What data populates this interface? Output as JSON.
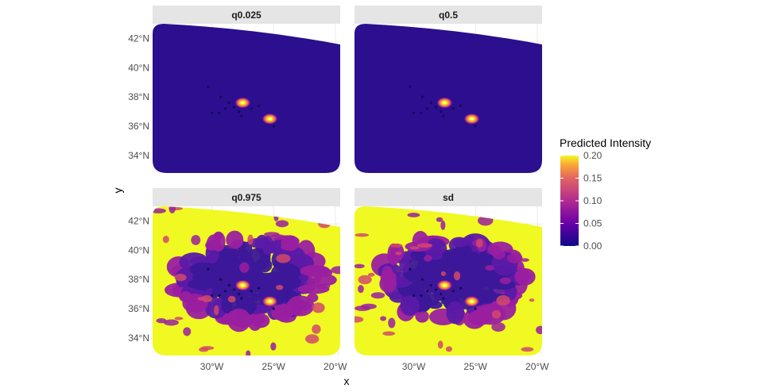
{
  "chart_data": {
    "type": "heatmap",
    "title": "",
    "xlabel": "x",
    "ylabel": "y",
    "x_ticks": [
      "30°W",
      "25°W",
      "20°W"
    ],
    "y_ticks": [
      "34°N",
      "36°N",
      "38°N",
      "40°N",
      "42°N"
    ],
    "x_tick_values": [
      -30,
      -25,
      -20
    ],
    "y_tick_values": [
      34,
      36,
      38,
      40,
      42
    ],
    "xlim": [
      -34.8,
      -19.6
    ],
    "ylim": [
      32.8,
      43.0
    ],
    "grid": true,
    "facets": [
      {
        "name": "q0.025",
        "background": "low"
      },
      {
        "name": "q0.5",
        "background": "low"
      },
      {
        "name": "q0.975",
        "background": "high"
      },
      {
        "name": "sd",
        "background": "high"
      }
    ],
    "legend": {
      "title": "Predicted Intensity",
      "labels": [
        "0.20",
        "0.15",
        "0.10",
        "0.05",
        "0.00"
      ],
      "values": [
        0.2,
        0.15,
        0.1,
        0.05,
        0.0
      ],
      "range": [
        0.0,
        0.2
      ],
      "placement": "right"
    },
    "palette": {
      "low": "#2b0f8e",
      "mid_low": "#5a1aa6",
      "mid": "#9a1fa0",
      "mid_high": "#d1496b",
      "high_orange": "#f58a3c",
      "high": "#f0f921"
    },
    "hotspots": [
      {
        "lon": -27.5,
        "lat": 37.6,
        "value": 0.2
      },
      {
        "lon": -25.3,
        "lat": 36.5,
        "value": 0.2
      }
    ],
    "points": [
      {
        "lon": -30.3,
        "lat": 38.7
      },
      {
        "lon": -29.3,
        "lat": 38.0
      },
      {
        "lon": -28.6,
        "lat": 37.6
      },
      {
        "lon": -28.2,
        "lat": 37.3
      },
      {
        "lon": -27.8,
        "lat": 37.0
      },
      {
        "lon": -28.9,
        "lat": 37.2
      },
      {
        "lon": -30.0,
        "lat": 36.9
      },
      {
        "lon": -29.4,
        "lat": 36.9
      },
      {
        "lon": -26.8,
        "lat": 37.2
      },
      {
        "lon": -27.6,
        "lat": 36.7
      },
      {
        "lon": -26.2,
        "lat": 37.4
      },
      {
        "lon": -25.0,
        "lat": 36.0
      }
    ]
  }
}
